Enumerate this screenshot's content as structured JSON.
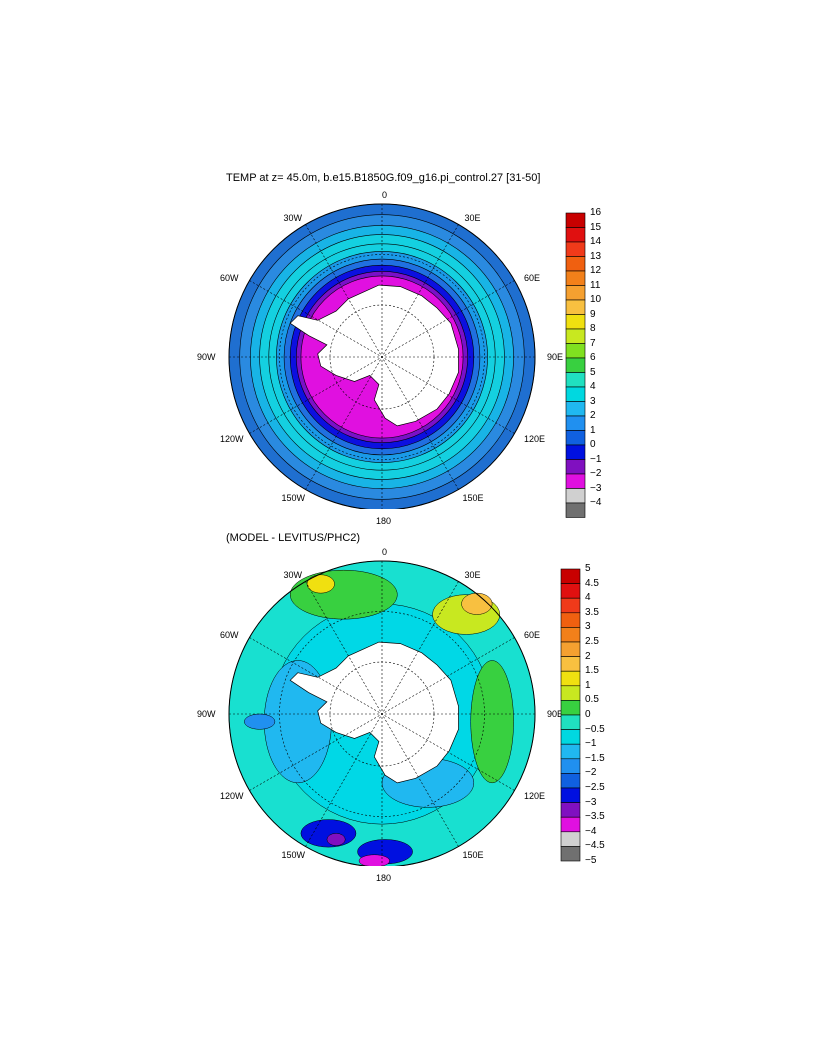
{
  "panel_top": {
    "title": "TEMP at z=  45.0m, b.e15.B1850G.f09_g16.pi_control.27 [31-50]",
    "lon_labels": {
      "north": "0",
      "south": "180",
      "east": "90E",
      "west": "90W",
      "ne1": "30E",
      "ne2": "60E",
      "nw1": "30W",
      "nw2": "60W",
      "se1": "120E",
      "se2": "150E",
      "sw1": "120W",
      "sw2": "150W"
    },
    "colorbar": {
      "labels": [
        "16",
        "15",
        "14",
        "13",
        "12",
        "11",
        "10",
        "9",
        "8",
        "7",
        "6",
        "5",
        "4",
        "3",
        "2",
        "1",
        "0",
        "−1",
        "−2",
        "−3",
        "−4"
      ],
      "colors": [
        "#c80000",
        "#e01010",
        "#f03a1a",
        "#f06010",
        "#f2801a",
        "#f5a030",
        "#f8c040",
        "#f0e010",
        "#c8e820",
        "#80e020",
        "#38d040",
        "#20e0c0",
        "#00d8e0",
        "#20b8f0",
        "#2090f0",
        "#1060e0",
        "#0010e0",
        "#8010c0",
        "#e010e0",
        "#d0d0d0",
        "#707070"
      ]
    },
    "rings_from_outside": [
      "#1f6fd0",
      "#2a8ae0",
      "#18b4e6",
      "#14d0e0",
      "#14d0e0",
      "#1a9ae8",
      "#2070e0",
      "#0c10e0",
      "#7a10c8",
      "#e010e0"
    ]
  },
  "panel_bottom": {
    "title": "(MODEL - LEVITUS/PHC2)",
    "lon_labels": {
      "north": "0",
      "south": "180",
      "east": "90E",
      "west": "90W",
      "ne1": "30E",
      "ne2": "60E",
      "nw1": "30W",
      "nw2": "60W",
      "se1": "120E",
      "se2": "150E",
      "sw1": "120W",
      "sw2": "150W"
    },
    "colorbar": {
      "labels": [
        "5",
        "4.5",
        "4",
        "3.5",
        "3",
        "2.5",
        "2",
        "1.5",
        "1",
        "0.5",
        "0",
        "−0.5",
        "−1",
        "−1.5",
        "−2",
        "−2.5",
        "−3",
        "−3.5",
        "−4",
        "−4.5",
        "−5"
      ],
      "colors": [
        "#c80000",
        "#e01010",
        "#f03a1a",
        "#f06010",
        "#f2801a",
        "#f5a030",
        "#f8c040",
        "#f0e010",
        "#c8e820",
        "#38d040",
        "#20e0c0",
        "#00d8e0",
        "#20b8f0",
        "#2090f0",
        "#1060e0",
        "#0010e0",
        "#8010c0",
        "#e010e0",
        "#d0d0d0",
        "#707070"
      ]
    }
  }
}
